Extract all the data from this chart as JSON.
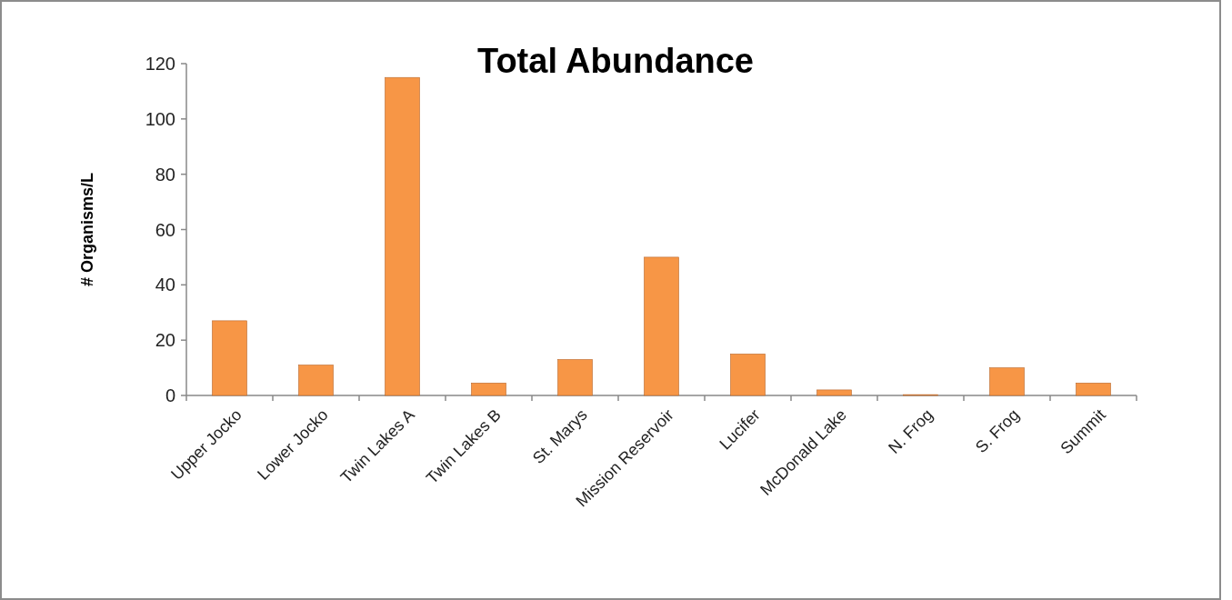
{
  "chart_data": {
    "type": "bar",
    "title": "Total Abundance",
    "ylabel": "# Organisms/L",
    "categories": [
      "Upper Jocko",
      "Lower Jocko",
      "Twin Lakes A",
      "Twin Lakes B",
      "St. Marys",
      "Mission Reservoir",
      "Lucifer",
      "McDonald Lake",
      "N. Frog",
      "S. Frog",
      "Summit"
    ],
    "values": [
      27,
      11,
      115,
      4.5,
      13,
      50,
      15,
      2,
      0.3,
      10,
      4.5
    ],
    "color": "#f79646",
    "ylim": [
      0,
      120
    ],
    "yticks": [
      0,
      20,
      40,
      60,
      80,
      100,
      120
    ],
    "grid": false
  }
}
